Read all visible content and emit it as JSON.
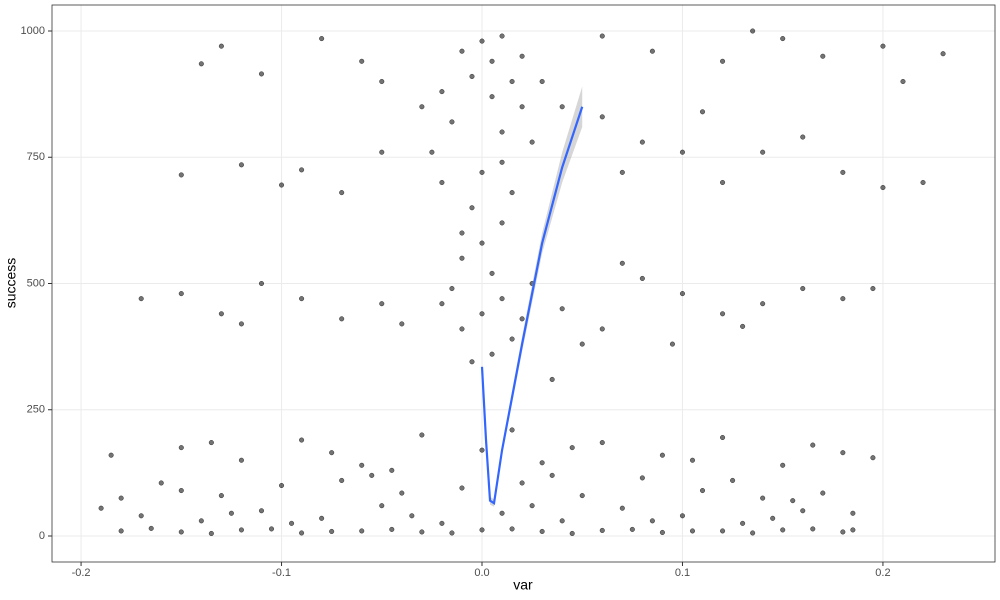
{
  "chart_data": {
    "type": "scatter",
    "x_label": "var",
    "y_label": "success",
    "xlim": [
      -0.2145,
      0.2559
    ],
    "ylim": [
      -51.5,
      1051.5
    ],
    "xticks": [
      -0.2,
      -0.1,
      {
        "value": 0,
        "label": "0.0"
      },
      0.1,
      0.2
    ],
    "yticks": [
      0,
      250,
      500,
      750,
      1000
    ],
    "grid": true,
    "color": "#000000",
    "x": [
      -0.18,
      -0.15,
      -0.12,
      -0.09,
      -0.06,
      -0.03,
      0.0,
      0.03,
      0.06,
      0.09,
      0.12,
      0.15,
      0.18,
      -0.165,
      -0.135,
      -0.105,
      -0.075,
      -0.045,
      -0.015,
      0.015,
      0.045,
      0.075,
      0.105,
      0.135,
      0.165,
      0.185,
      -0.19,
      -0.17,
      -0.14,
      -0.11,
      -0.08,
      -0.05,
      -0.02,
      0.01,
      0.04,
      0.07,
      0.1,
      0.13,
      0.16,
      0.185,
      -0.125,
      -0.095,
      -0.035,
      0.025,
      0.085,
      0.145,
      -0.18,
      -0.15,
      -0.13,
      -0.1,
      -0.07,
      -0.04,
      -0.01,
      0.02,
      0.05,
      0.08,
      0.11,
      0.14,
      0.17,
      -0.16,
      -0.055,
      0.035,
      0.125,
      0.155,
      -0.185,
      -0.15,
      -0.12,
      -0.09,
      -0.06,
      -0.03,
      0.0,
      0.03,
      0.06,
      0.09,
      0.12,
      0.15,
      0.18,
      0.195,
      -0.135,
      -0.075,
      -0.045,
      0.015,
      0.045,
      0.105,
      0.165,
      0.0,
      0.005,
      0.01,
      0.015,
      -0.01,
      -0.02,
      0.02,
      -0.015,
      0.005,
      0.01,
      -0.025,
      0.025,
      0.0,
      -0.02,
      0.015,
      -0.005,
      0.01,
      0.0,
      -0.01,
      0.005,
      -0.015,
      0.01,
      0.0,
      -0.01,
      0.015,
      0.005,
      -0.005,
      0.02,
      -0.02,
      0.025,
      -0.03,
      0.03,
      0.02,
      -0.005,
      0.01,
      -0.01,
      -0.14,
      -0.13,
      -0.11,
      -0.08,
      -0.06,
      -0.05,
      0.06,
      0.085,
      0.12,
      0.135,
      0.15,
      0.17,
      0.2,
      0.23,
      0.21,
      -0.15,
      -0.12,
      -0.1,
      -0.09,
      -0.07,
      -0.05,
      0.06,
      0.08,
      0.1,
      0.12,
      0.14,
      0.16,
      0.18,
      0.2,
      0.22,
      0.11,
      0.04,
      0.07,
      -0.17,
      -0.15,
      -0.13,
      -0.11,
      -0.09,
      -0.07,
      -0.05,
      -0.04,
      0.04,
      0.06,
      0.08,
      0.1,
      0.12,
      0.14,
      0.16,
      0.18,
      0.195,
      0.095,
      0.07,
      0.05,
      0.035,
      -0.12,
      0.13
    ],
    "y": [
      10,
      8,
      12,
      6,
      10,
      8,
      12,
      9,
      11,
      7,
      10,
      12,
      8,
      15,
      5,
      14,
      9,
      13,
      6,
      14,
      5,
      13,
      10,
      6,
      14,
      12,
      55,
      40,
      30,
      50,
      35,
      60,
      25,
      45,
      30,
      55,
      40,
      25,
      50,
      45,
      45,
      25,
      40,
      60,
      30,
      35,
      75,
      90,
      80,
      100,
      110,
      85,
      95,
      105,
      80,
      115,
      90,
      75,
      85,
      105,
      120,
      120,
      110,
      70,
      160,
      175,
      150,
      190,
      140,
      200,
      170,
      145,
      185,
      160,
      195,
      140,
      165,
      155,
      185,
      165,
      130,
      210,
      175,
      150,
      180,
      980,
      940,
      990,
      900,
      960,
      880,
      850,
      820,
      870,
      800,
      760,
      780,
      720,
      700,
      680,
      650,
      620,
      580,
      550,
      520,
      490,
      470,
      440,
      410,
      390,
      360,
      345,
      430,
      460,
      500,
      850,
      900,
      950,
      910,
      740,
      600,
      935,
      970,
      915,
      985,
      940,
      900,
      990,
      960,
      940,
      1000,
      985,
      950,
      970,
      955,
      900,
      715,
      735,
      695,
      725,
      680,
      760,
      830,
      780,
      760,
      700,
      760,
      790,
      720,
      690,
      700,
      840,
      850,
      720,
      470,
      480,
      440,
      500,
      470,
      430,
      460,
      420,
      450,
      410,
      510,
      480,
      440,
      460,
      490,
      470,
      490,
      380,
      540,
      380,
      310,
      420,
      415
    ],
    "smooth": {
      "color": "#3366ff",
      "x": [
        0,
        0.002,
        0.004,
        0.006,
        0.01,
        0.02,
        0.03,
        0.04,
        0.05
      ],
      "y": [
        335,
        190,
        70,
        65,
        170,
        380,
        580,
        730,
        850
      ],
      "lower": [
        330,
        185,
        62,
        58,
        160,
        365,
        560,
        700,
        810
      ],
      "upper": [
        340,
        195,
        78,
        72,
        180,
        395,
        600,
        760,
        890
      ]
    }
  }
}
